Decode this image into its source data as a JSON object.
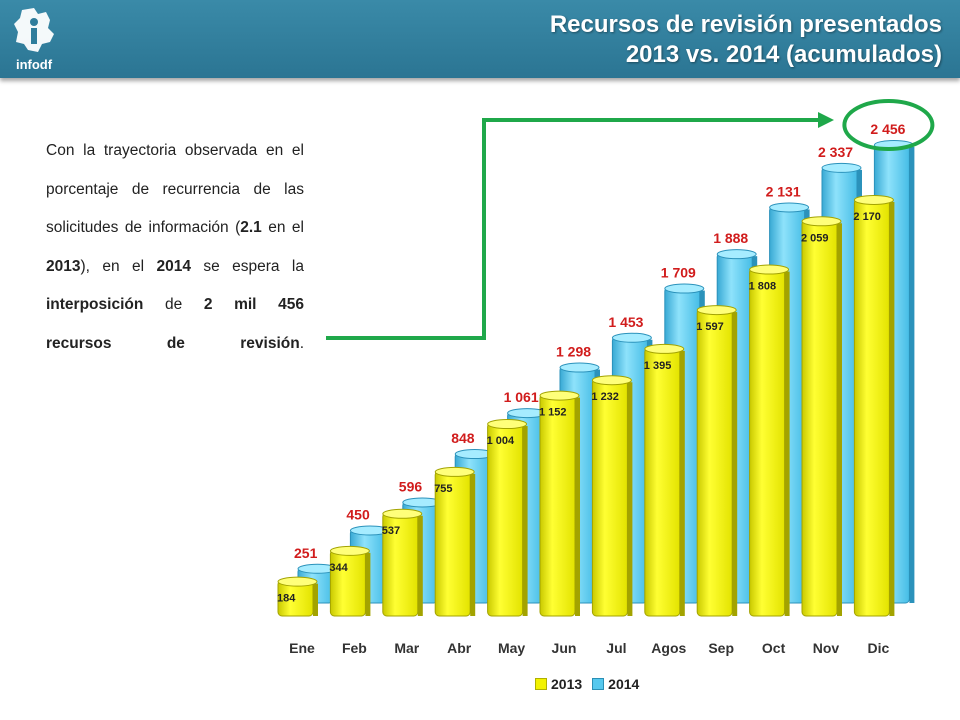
{
  "header": {
    "title_line1": "Recursos de revisión presentados",
    "title_line2": "2013 vs. 2014 (acumulados)",
    "logo_text": "infodf"
  },
  "body": {
    "p1": "Con la trayectoria observada en el porcentaje de recurrencia de las solicitudes de información (",
    "b1": "2.1",
    "p2": " en el ",
    "b2": "2013",
    "p3": "), en el ",
    "b3": "2014",
    "p4": " se espera la ",
    "b4": "interposición",
    "p5": " de ",
    "b5": "2 mil 456 recursos de revisión",
    "p6": "."
  },
  "colors": {
    "header": "#2f7d9c",
    "bar2013": "#f2f200",
    "bar2014": "#55c8ee",
    "label2014": "#d11c1c",
    "arrow": "#1fa84a",
    "circle": "#1fa84a"
  },
  "chart_data": {
    "type": "bar",
    "categories": [
      "Ene",
      "Feb",
      "Mar",
      "Abr",
      "May",
      "Jun",
      "Jul",
      "Agos",
      "Sep",
      "Oct",
      "Nov",
      "Dic"
    ],
    "series": [
      {
        "name": "2013",
        "values": [
          184,
          344,
          537,
          755,
          1004,
          1152,
          1232,
          1395,
          1597,
          1808,
          2059,
          2170
        ],
        "labels": [
          "184",
          "344",
          "537",
          "755",
          "1 004",
          "1 152",
          "1 232",
          "1 395",
          "1 597",
          "1 808",
          "2 059",
          "2 170"
        ]
      },
      {
        "name": "2014",
        "values": [
          251,
          450,
          596,
          848,
          1061,
          1298,
          1453,
          1709,
          1888,
          2131,
          2337,
          2456
        ],
        "labels": [
          "251",
          "450",
          "596",
          "848",
          "1 061",
          "1 298",
          "1 453",
          "1 709",
          "1 888",
          "2 131",
          "2 337",
          "2 456"
        ]
      }
    ],
    "title": "",
    "xlabel": "",
    "ylabel": "",
    "ylim": [
      0,
      2456
    ],
    "grid": false,
    "legend": "bottom"
  }
}
